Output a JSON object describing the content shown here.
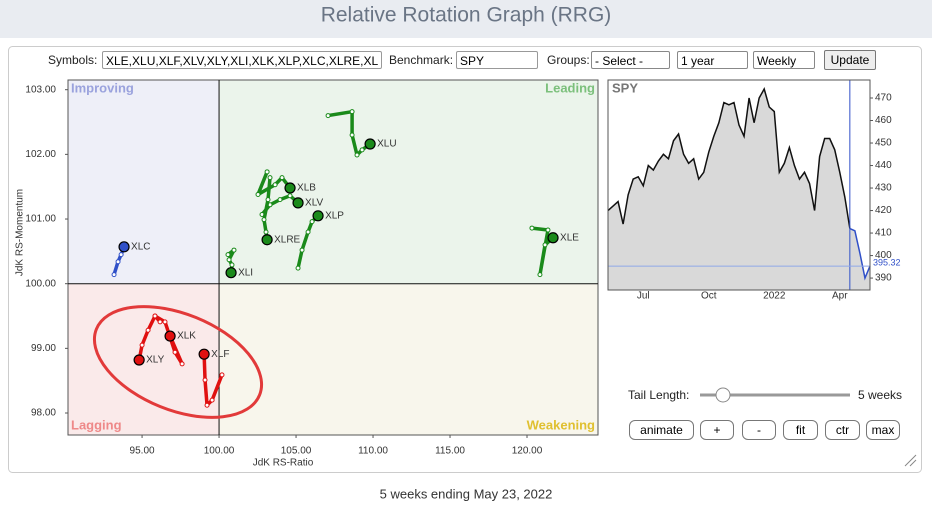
{
  "header": {
    "title": "Relative Rotation Graph (RRG)"
  },
  "controls": {
    "symbols_label": "Symbols:",
    "symbols": "XLE,XLU,XLF,XLV,XLY,XLI,XLK,XLP,XLC,XLRE,XL",
    "benchmark_label": "Benchmark:",
    "benchmark": "SPY",
    "groups_label": "Groups:",
    "groups": "- Select -",
    "period": "1 year",
    "frequency": "Weekly",
    "update": "Update"
  },
  "chart_data": [
    {
      "type": "rrg",
      "x_label": "JdK RS-Ratio",
      "y_label": "JdK RS-Momentum",
      "xlim": [
        90.19,
        124.61
      ],
      "ylim": [
        97.66,
        103.15
      ],
      "xticks": [
        {
          "value": 95,
          "label": "95.00"
        },
        {
          "value": 100,
          "label": "100.00"
        },
        {
          "value": 105,
          "label": "105.00"
        },
        {
          "value": 110,
          "label": "110.00"
        },
        {
          "value": 115,
          "label": "115.00"
        },
        {
          "value": 120,
          "label": "120.00"
        }
      ],
      "yticks": [
        {
          "value": 98,
          "label": "98.00"
        },
        {
          "value": 99,
          "label": "99.00"
        },
        {
          "value": 100,
          "label": "100.00"
        },
        {
          "value": 101,
          "label": "101.00"
        },
        {
          "value": 102,
          "label": "102.00"
        },
        {
          "value": 103,
          "label": "103.00"
        }
      ],
      "quadrant_center": {
        "x": 100,
        "y": 100
      },
      "quadrants": [
        {
          "label": "Improving",
          "color": "#9aa2dd",
          "fill": "#eeeff8"
        },
        {
          "label": "Leading",
          "color": "#7cc07c",
          "fill": "#ebf4eb"
        },
        {
          "label": "Lagging",
          "color": "#ee8888",
          "fill": "#faeaea"
        },
        {
          "label": "Weakening",
          "color": "#e0c030",
          "fill": "#f8f6ec"
        }
      ],
      "series": [
        {
          "name": "XLU",
          "color": "#1a8a1a",
          "x": [
            107.08,
            108.64,
            108.64,
            108.96,
            109.29,
            109.81
          ],
          "values": [
            102.6,
            102.66,
            102.3,
            101.99,
            102.07,
            102.16
          ]
        },
        {
          "name": "XLB",
          "color": "#1a8a1a",
          "x": [
            103.12,
            102.53,
            103.64,
            104.09,
            104.61
          ],
          "values": [
            101.73,
            101.38,
            101.53,
            101.64,
            101.48
          ]
        },
        {
          "name": "XLV",
          "color": "#1a8a1a",
          "x": [
            102.79,
            103.31,
            103.96,
            104.61,
            105.13
          ],
          "values": [
            101.07,
            101.22,
            101.3,
            101.36,
            101.25
          ]
        },
        {
          "name": "XLRE",
          "color": "#1a8a1a",
          "x": [
            103.31,
            103.18,
            102.92,
            103.05,
            103.12
          ],
          "values": [
            101.64,
            101.3,
            100.99,
            100.8,
            100.68
          ]
        },
        {
          "name": "XLP",
          "color": "#1a8a1a",
          "x": [
            105.13,
            105.39,
            105.78,
            106.04,
            106.43
          ],
          "values": [
            100.24,
            100.52,
            100.8,
            100.96,
            101.05
          ]
        },
        {
          "name": "XLI",
          "color": "#1a8a1a",
          "x": [
            100.58,
            100.97,
            100.65,
            100.84,
            100.78
          ],
          "values": [
            100.45,
            100.52,
            100.37,
            100.29,
            100.17
          ]
        },
        {
          "name": "XLE",
          "color": "#1a8a1a",
          "x": [
            120.32,
            121.36,
            120.84,
            121.17,
            121.69
          ],
          "values": [
            100.86,
            100.83,
            100.14,
            100.6,
            100.71
          ]
        },
        {
          "name": "XLC",
          "color": "#3050c8",
          "x": [
            93.18,
            93.44,
            93.64,
            93.83
          ],
          "values": [
            100.14,
            100.34,
            100.45,
            100.57
          ]
        },
        {
          "name": "XLK",
          "color": "#e01010",
          "x": [
            95.84,
            96.49,
            97.14,
            97.6,
            96.82
          ],
          "values": [
            99.5,
            99.41,
            98.94,
            98.76,
            99.19
          ]
        },
        {
          "name": "XLY",
          "color": "#e01010",
          "x": [
            96.17,
            95.84,
            95.39,
            95.0,
            94.81
          ],
          "values": [
            99.41,
            99.5,
            99.28,
            99.05,
            98.82
          ]
        },
        {
          "name": "XLF",
          "color": "#e01010",
          "x": [
            100.19,
            99.55,
            99.22,
            99.09,
            99.03
          ],
          "values": [
            98.59,
            98.2,
            98.12,
            98.51,
            98.91
          ]
        }
      ]
    },
    {
      "type": "area",
      "title": "SPY",
      "ylim": [
        384.7,
        478
      ],
      "yticks": [
        390,
        400,
        410,
        420,
        430,
        440,
        450,
        460,
        470
      ],
      "categories": [
        null,
        null,
        null,
        null,
        null,
        null,
        null,
        "Jul",
        null,
        null,
        null,
        null,
        null,
        null,
        null,
        null,
        null,
        null,
        null,
        null,
        "Oct",
        null,
        null,
        null,
        null,
        null,
        null,
        null,
        null,
        null,
        null,
        null,
        null,
        "2022",
        null,
        null,
        null,
        null,
        null,
        null,
        null,
        null,
        null,
        null,
        null,
        null,
        "Apr",
        null,
        null,
        null,
        null,
        null,
        null
      ],
      "fill": "#d9d9d9",
      "series": [
        {
          "color": "#111111",
          "values": [
            420,
            422,
            424,
            414,
            427,
            434,
            435,
            431,
            440,
            438,
            442,
            445,
            443,
            451,
            454,
            445,
            441,
            443,
            434,
            437,
            446,
            453,
            459,
            468,
            467,
            468,
            458,
            453,
            470,
            459,
            470,
            474,
            466,
            464,
            437,
            441,
            448,
            440,
            434,
            437,
            432,
            420,
            444,
            452,
            452,
            447,
            437,
            426,
            412,
            null,
            null,
            null,
            null
          ]
        },
        {
          "color": "#3050c8",
          "values": [
            null,
            null,
            null,
            null,
            null,
            null,
            null,
            null,
            null,
            null,
            null,
            null,
            null,
            null,
            null,
            null,
            null,
            null,
            null,
            null,
            null,
            null,
            null,
            null,
            null,
            null,
            null,
            null,
            null,
            null,
            null,
            null,
            null,
            null,
            null,
            null,
            null,
            null,
            null,
            null,
            null,
            null,
            null,
            null,
            null,
            null,
            null,
            null,
            412,
            411,
            401,
            390,
            395.32
          ]
        }
      ]
    }
  ],
  "tail_controls": {
    "label": "Tail Length:",
    "value_text": "5 weeks",
    "buttons": [
      "animate",
      "+",
      "-",
      "fit",
      "ctr",
      "max"
    ]
  },
  "footer": {
    "caption": "5 weeks ending May 23, 2022"
  }
}
